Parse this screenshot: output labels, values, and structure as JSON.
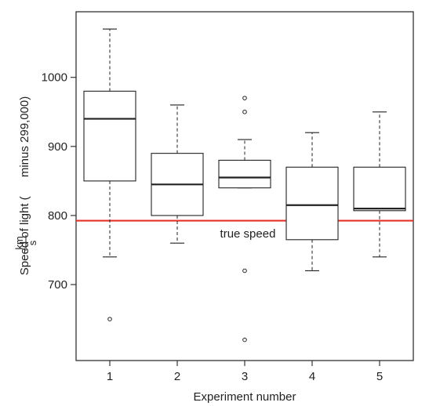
{
  "chart_data": {
    "type": "boxplot",
    "xlabel": "Experiment number",
    "ylabel_prefix": "Speed of light (",
    "ylabel_frac_num": "km",
    "ylabel_frac_den": "s",
    "ylabel_suffix": " minus 299,000)",
    "categories": [
      "1",
      "2",
      "3",
      "4",
      "5"
    ],
    "yticks": [
      700,
      800,
      900,
      1000
    ],
    "ylim": [
      590,
      1095
    ],
    "xlim": [
      0.5,
      5.5
    ],
    "boxes": [
      {
        "x": 1,
        "whisker_low": 740,
        "q1": 850,
        "median": 940,
        "q3": 980,
        "whisker_high": 1070,
        "outliers": [
          650
        ]
      },
      {
        "x": 2,
        "whisker_low": 760,
        "q1": 800,
        "median": 845,
        "q3": 890,
        "whisker_high": 960,
        "outliers": []
      },
      {
        "x": 3,
        "whisker_low": 840,
        "q1": 840,
        "median": 855,
        "q3": 880,
        "whisker_high": 910,
        "outliers": [
          620,
          720,
          950,
          970
        ]
      },
      {
        "x": 4,
        "whisker_low": 720,
        "q1": 765,
        "median": 815,
        "q3": 870,
        "whisker_high": 920,
        "outliers": []
      },
      {
        "x": 5,
        "whisker_low": 740,
        "q1": 807,
        "median": 810,
        "q3": 870,
        "whisker_high": 950,
        "outliers": []
      }
    ],
    "reference_line": {
      "value": 792.5,
      "label": "true speed",
      "color": "#e8302b"
    },
    "grid": false,
    "legend": "none"
  }
}
